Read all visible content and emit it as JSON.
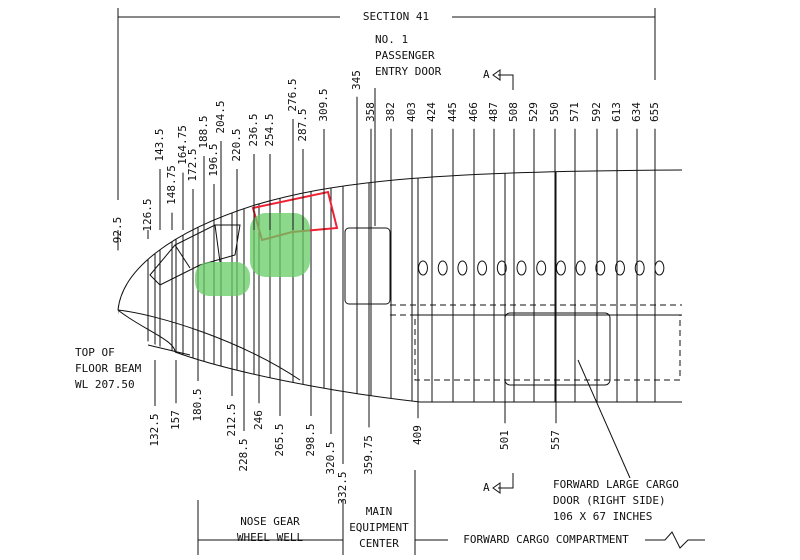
{
  "header": {
    "section": "SECTION 41"
  },
  "callouts": {
    "entry_door": [
      "NO. 1",
      "PASSENGER",
      "ENTRY DOOR"
    ],
    "floor_beam": [
      "TOP OF",
      "FLOOR BEAM",
      "WL 207.50"
    ],
    "cargo_door": [
      "FORWARD LARGE CARGO",
      "DOOR (RIGHT SIDE)",
      "106 X 67 INCHES"
    ],
    "view_markers": [
      "A",
      "A"
    ]
  },
  "stations": {
    "top": [
      "92.5",
      "126.5",
      "143.5",
      "148.75",
      "164.75",
      "172.5",
      "188.5",
      "196.5",
      "204.5",
      "220.5",
      "236.5",
      "254.5",
      "276.5",
      "287.5",
      "309.5",
      "345",
      "358",
      "382",
      "403",
      "424",
      "445",
      "466",
      "487",
      "508",
      "529",
      "550",
      "571",
      "592",
      "613",
      "634",
      "655"
    ],
    "bottom": [
      "132.5",
      "157",
      "180.5",
      "212.5",
      "228.5",
      "246",
      "265.5",
      "298.5",
      "320.5",
      "332.5",
      "359.75",
      "409",
      "501",
      "557"
    ]
  },
  "zones": {
    "nose_gear": [
      "NOSE GEAR",
      "WHEEL WELL"
    ],
    "equipment": [
      "MAIN",
      "EQUIPMENT",
      "CENTER"
    ],
    "cargo": "FORWARD CARGO COMPARTMENT"
  }
}
